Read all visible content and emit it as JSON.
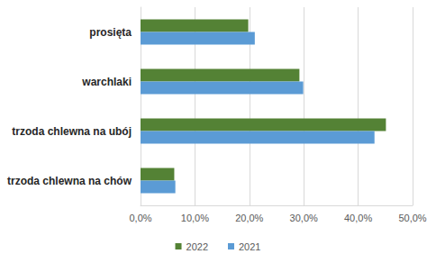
{
  "chart_data": {
    "type": "bar",
    "orientation": "horizontal",
    "categories": [
      "prosięta",
      "warchlaki",
      "trzoda chlewna na ubój",
      "trzoda chlewna na chów"
    ],
    "series": [
      {
        "name": "2022",
        "color": "#548235",
        "values": [
          19.8,
          29.2,
          45.1,
          6.2
        ]
      },
      {
        "name": "2021",
        "color": "#5b9bd5",
        "values": [
          21.0,
          29.9,
          43.0,
          6.4
        ]
      }
    ],
    "xlim": [
      0,
      50
    ],
    "xticks": [
      {
        "value": 0,
        "label": "0,0%"
      },
      {
        "value": 10,
        "label": "10,0%"
      },
      {
        "value": 20,
        "label": "20,0%"
      },
      {
        "value": 30,
        "label": "30,0%"
      },
      {
        "value": 40,
        "label": "40,0%"
      },
      {
        "value": 50,
        "label": "50,0%"
      }
    ],
    "grid": true,
    "legend": "bottom"
  }
}
